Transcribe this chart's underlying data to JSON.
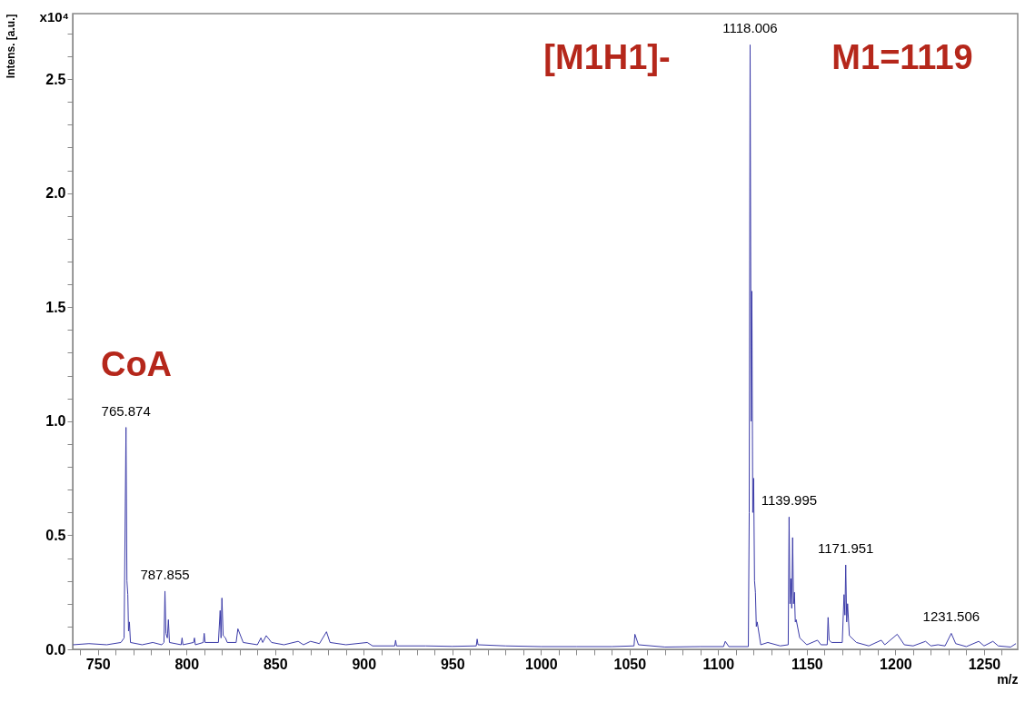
{
  "chart_data": {
    "type": "line",
    "xlabel": "m/z",
    "ylabel": "Intens. [a.u.]",
    "xlim": [
      735.8,
      1269
    ],
    "ylim": [
      0,
      2.787
    ],
    "xticks": [
      {
        "value": 740,
        "label": null
      },
      750,
      {
        "value": 760,
        "label": null
      },
      {
        "value": 770,
        "label": null
      },
      {
        "value": 780,
        "label": null
      },
      {
        "value": 790,
        "label": null
      },
      800,
      {
        "value": 810,
        "label": null
      },
      {
        "value": 820,
        "label": null
      },
      {
        "value": 830,
        "label": null
      },
      {
        "value": 840,
        "label": null
      },
      850,
      {
        "value": 860,
        "label": null
      },
      {
        "value": 870,
        "label": null
      },
      {
        "value": 880,
        "label": null
      },
      {
        "value": 890,
        "label": null
      },
      900,
      {
        "value": 910,
        "label": null
      },
      {
        "value": 920,
        "label": null
      },
      {
        "value": 930,
        "label": null
      },
      {
        "value": 940,
        "label": null
      },
      950,
      {
        "value": 960,
        "label": null
      },
      {
        "value": 970,
        "label": null
      },
      {
        "value": 980,
        "label": null
      },
      {
        "value": 990,
        "label": null
      },
      1000,
      {
        "value": 1010,
        "label": null
      },
      {
        "value": 1020,
        "label": null
      },
      {
        "value": 1030,
        "label": null
      },
      {
        "value": 1040,
        "label": null
      },
      1050,
      {
        "value": 1060,
        "label": null
      },
      {
        "value": 1070,
        "label": null
      },
      {
        "value": 1080,
        "label": null
      },
      {
        "value": 1090,
        "label": null
      },
      1100,
      {
        "value": 1110,
        "label": null
      },
      {
        "value": 1120,
        "label": null
      },
      {
        "value": 1130,
        "label": null
      },
      {
        "value": 1140,
        "label": null
      },
      1150,
      {
        "value": 1160,
        "label": null
      },
      {
        "value": 1170,
        "label": null
      },
      {
        "value": 1180,
        "label": null
      },
      {
        "value": 1190,
        "label": null
      },
      1200,
      {
        "value": 1210,
        "label": null
      },
      {
        "value": 1220,
        "label": null
      },
      {
        "value": 1230,
        "label": null
      },
      {
        "value": 1240,
        "label": null
      },
      1250,
      {
        "value": 1260,
        "label": null
      }
    ],
    "yticks": [
      {
        "value": 0,
        "label": "0.0"
      },
      {
        "value": 0.1,
        "label": null
      },
      {
        "value": 0.2,
        "label": null
      },
      {
        "value": 0.3,
        "label": null
      },
      {
        "value": 0.4,
        "label": null
      },
      0.5,
      {
        "value": 0.6,
        "label": null
      },
      {
        "value": 0.7,
        "label": null
      },
      {
        "value": 0.8,
        "label": null
      },
      {
        "value": 0.9,
        "label": null
      },
      {
        "value": 1,
        "label": "1.0"
      },
      {
        "value": 1.1,
        "label": null
      },
      {
        "value": 1.2,
        "label": null
      },
      {
        "value": 1.3,
        "label": null
      },
      {
        "value": 1.4,
        "label": null
      },
      1.5,
      {
        "value": 1.6,
        "label": null
      },
      {
        "value": 1.7,
        "label": null
      },
      {
        "value": 1.8,
        "label": null
      },
      {
        "value": 1.9,
        "label": null
      },
      {
        "value": 2,
        "label": "2.0"
      },
      {
        "value": 2.1,
        "label": null
      },
      {
        "value": 2.2,
        "label": null
      },
      {
        "value": 2.3,
        "label": null
      },
      {
        "value": 2.4,
        "label": null
      },
      2.5,
      {
        "value": 2.6,
        "label": null
      },
      {
        "value": 2.7,
        "label": null
      }
    ],
    "grid": false,
    "marker": "none",
    "line_style": "solid",
    "series": [
      {
        "color": "#3b3ba8",
        "x": [
          736,
          745,
          755,
          763,
          764.8,
          765.874,
          766.4,
          766.9,
          767.3,
          767.8,
          768.4,
          775,
          781,
          786,
          787.3,
          787.855,
          788.4,
          789.2,
          789.8,
          790.4,
          797,
          797.5,
          798,
          804,
          804.5,
          805,
          809.5,
          810,
          810.5,
          818,
          819,
          819.5,
          820,
          820.7,
          822,
          823,
          828,
          829,
          832,
          840,
          842,
          843,
          845,
          848,
          855,
          863,
          866,
          870,
          875,
          879,
          881,
          890,
          902,
          905,
          917.5,
          918,
          918.5,
          935,
          950,
          963.5,
          964,
          964.5,
          980,
          1000,
          1020,
          1040,
          1052.5,
          1053,
          1055,
          1070,
          1090,
          1103,
          1104,
          1106,
          1117,
          1117.5,
          1118.006,
          1118.6,
          1119,
          1119.5,
          1120,
          1120.5,
          1121,
          1121.5,
          1122,
          1124,
          1128,
          1135,
          1139.5,
          1139.995,
          1140.5,
          1141,
          1141.5,
          1142,
          1142.5,
          1143,
          1143.5,
          1144,
          1146,
          1150,
          1156,
          1158,
          1161.5,
          1162,
          1162.6,
          1164,
          1170,
          1171,
          1171.5,
          1171.951,
          1172.5,
          1173,
          1174,
          1178,
          1185,
          1192,
          1194,
          1201,
          1205,
          1210,
          1217,
          1220,
          1224,
          1228,
          1231.506,
          1234,
          1240,
          1247,
          1250,
          1255,
          1258,
          1265,
          1268
        ],
        "values": [
          0.02,
          0.025,
          0.02,
          0.03,
          0.05,
          0.973,
          0.3,
          0.24,
          0.08,
          0.12,
          0.03,
          0.02,
          0.03,
          0.02,
          0.03,
          0.255,
          0.07,
          0.05,
          0.13,
          0.03,
          0.02,
          0.05,
          0.02,
          0.03,
          0.05,
          0.02,
          0.03,
          0.07,
          0.03,
          0.03,
          0.17,
          0.05,
          0.225,
          0.06,
          0.05,
          0.03,
          0.03,
          0.09,
          0.03,
          0.02,
          0.05,
          0.03,
          0.06,
          0.03,
          0.02,
          0.035,
          0.02,
          0.035,
          0.025,
          0.077,
          0.03,
          0.02,
          0.03,
          0.015,
          0.015,
          0.04,
          0.015,
          0.015,
          0.013,
          0.015,
          0.045,
          0.02,
          0.015,
          0.012,
          0.012,
          0.012,
          0.015,
          0.066,
          0.02,
          0.01,
          0.012,
          0.012,
          0.035,
          0.012,
          0.012,
          0.6,
          2.65,
          1.0,
          1.57,
          0.6,
          0.75,
          0.3,
          0.25,
          0.1,
          0.12,
          0.02,
          0.03,
          0.015,
          0.02,
          0.58,
          0.2,
          0.31,
          0.18,
          0.49,
          0.2,
          0.25,
          0.12,
          0.13,
          0.05,
          0.02,
          0.04,
          0.02,
          0.02,
          0.14,
          0.04,
          0.03,
          0.03,
          0.24,
          0.15,
          0.37,
          0.12,
          0.2,
          0.06,
          0.03,
          0.015,
          0.04,
          0.02,
          0.066,
          0.02,
          0.015,
          0.035,
          0.015,
          0.02,
          0.015,
          0.07,
          0.025,
          0.012,
          0.035,
          0.015,
          0.035,
          0.015,
          0.01,
          0.025
        ]
      }
    ],
    "annotations": [
      "x10⁴",
      "CoA",
      "[M1H1]-",
      "M1=1119",
      {
        "text": "765.874",
        "x": 765.874,
        "y": 0.973
      },
      {
        "text": "787.855",
        "x": 787.855,
        "y": 0.255
      },
      {
        "text": "1118.006",
        "x": 1118.006,
        "y": 2.65
      },
      {
        "text": "1139.995",
        "x": 1139.995,
        "y": 0.58
      },
      {
        "text": "1171.951",
        "x": 1171.951,
        "y": 0.37
      },
      {
        "text": "1231.506",
        "x": 1231.506,
        "y": 0.07
      }
    ]
  }
}
